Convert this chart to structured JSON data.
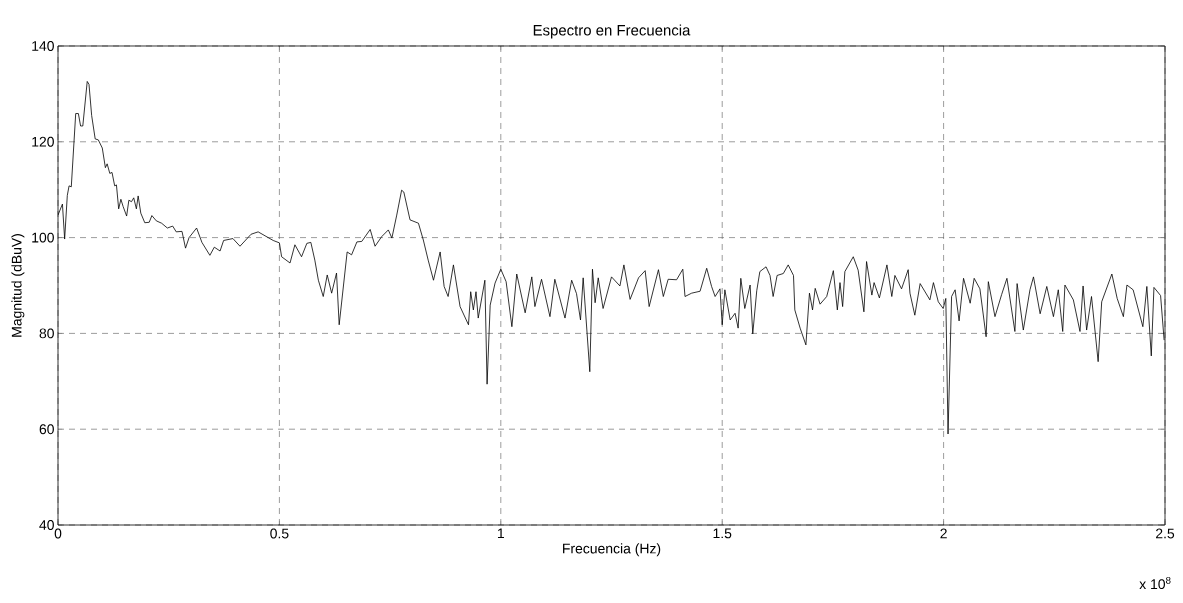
{
  "chart_data": {
    "type": "line",
    "title": "Espectro en Frecuencia",
    "xlabel": "Frecuencia (Hz)",
    "ylabel": "Magnitud (dBuV)",
    "annotations": [
      "x 10$^{8}$"
    ],
    "xlim": [
      0,
      2.5
    ],
    "xticks": [
      0,
      0.5,
      1,
      1.5,
      2,
      2.5
    ],
    "ylim": [
      40,
      140
    ],
    "yticks": [
      40,
      60,
      80,
      100,
      120,
      140
    ],
    "grid": true,
    "series": [
      {
        "color": "#000000",
        "x": [
          0,
          0.01,
          0.015,
          0.021,
          0.025,
          0.03,
          0.04,
          0.046,
          0.051,
          0.056,
          0.066,
          0.07,
          0.076,
          0.084,
          0.091,
          0.1,
          0.107,
          0.111,
          0.117,
          0.122,
          0.128,
          0.132,
          0.137,
          0.142,
          0.147,
          0.155,
          0.16,
          0.166,
          0.171,
          0.177,
          0.181,
          0.187,
          0.196,
          0.206,
          0.212,
          0.222,
          0.234,
          0.247,
          0.259,
          0.267,
          0.28,
          0.288,
          0.296,
          0.313,
          0.325,
          0.343,
          0.353,
          0.366,
          0.374,
          0.395,
          0.411,
          0.436,
          0.452,
          0.486,
          0.5,
          0.505,
          0.524,
          0.535,
          0.55,
          0.562,
          0.571,
          0.58,
          0.588,
          0.599,
          0.608,
          0.618,
          0.629,
          0.635,
          0.653,
          0.663,
          0.675,
          0.686,
          0.705,
          0.716,
          0.731,
          0.746,
          0.754,
          0.765,
          0.776,
          0.781,
          0.795,
          0.814,
          0.825,
          0.836,
          0.848,
          0.863,
          0.872,
          0.881,
          0.893,
          0.908,
          0.927,
          0.932,
          0.938,
          0.944,
          0.949,
          0.964,
          0.969,
          0.976,
          0.987,
          1.0,
          1.012,
          1.025,
          1.036,
          1.055,
          1.07,
          1.077,
          1.092,
          1.111,
          1.122,
          1.145,
          1.16,
          1.171,
          1.18,
          1.186,
          1.201,
          1.207,
          1.213,
          1.22,
          1.231,
          1.25,
          1.269,
          1.278,
          1.292,
          1.311,
          1.326,
          1.335,
          1.356,
          1.367,
          1.378,
          1.397,
          1.411,
          1.416,
          1.431,
          1.45,
          1.465,
          1.476,
          1.484,
          1.495,
          1.5,
          1.506,
          1.518,
          1.529,
          1.536,
          1.542,
          1.551,
          1.563,
          1.569,
          1.578,
          1.585,
          1.599,
          1.608,
          1.615,
          1.624,
          1.638,
          1.649,
          1.661,
          1.664,
          1.676,
          1.689,
          1.697,
          1.704,
          1.71,
          1.721,
          1.736,
          1.751,
          1.76,
          1.766,
          1.772,
          1.777,
          1.796,
          1.807,
          1.82,
          1.826,
          1.838,
          1.843,
          1.855,
          1.872,
          1.883,
          1.89,
          1.905,
          1.92,
          1.924,
          1.935,
          1.947,
          1.969,
          1.977,
          1.988,
          1.999,
          2.005,
          2.01,
          2.018,
          2.026,
          2.035,
          2.045,
          2.06,
          2.069,
          2.082,
          2.096,
          2.101,
          2.116,
          2.131,
          2.143,
          2.161,
          2.166,
          2.18,
          2.195,
          2.203,
          2.218,
          2.233,
          2.248,
          2.259,
          2.269,
          2.274,
          2.293,
          2.308,
          2.315,
          2.323,
          2.334,
          2.349,
          2.357,
          2.38,
          2.392,
          2.406,
          2.414,
          2.428,
          2.45,
          2.459,
          2.469,
          2.475,
          2.49,
          2.498
        ],
        "values": [
          104.7,
          107,
          99.7,
          108.8,
          110.8,
          110.6,
          125.9,
          125.9,
          123.3,
          123.3,
          132.6,
          132,
          125.5,
          120.6,
          120.4,
          118.7,
          114.6,
          115.4,
          113.4,
          113.6,
          110.8,
          111,
          106,
          108,
          106.5,
          104.5,
          107.8,
          107.5,
          108.3,
          106,
          108.7,
          105.1,
          103.1,
          103.2,
          104.6,
          103.5,
          103,
          102,
          102.4,
          101.2,
          101.3,
          97.8,
          100,
          102,
          99,
          96.3,
          98,
          97.2,
          99.4,
          99.8,
          98.2,
          100.7,
          101.2,
          99.4,
          98.9,
          96,
          94.7,
          98.5,
          96,
          98.8,
          99,
          95.3,
          91.1,
          87.7,
          92.2,
          88.4,
          92.6,
          81.8,
          97,
          96.4,
          99.1,
          99.2,
          101.7,
          98.2,
          100.2,
          101.6,
          99.9,
          104.7,
          109.9,
          109.5,
          103.7,
          103,
          99.5,
          95.3,
          91.1,
          97,
          89.8,
          87.7,
          94.3,
          85.6,
          81.8,
          88.7,
          84.9,
          88.7,
          83.2,
          91.1,
          69.4,
          85.9,
          90.5,
          93.4,
          90.8,
          81.4,
          92.4,
          84.3,
          91.8,
          85.6,
          91.3,
          83.5,
          91.3,
          83.2,
          91.1,
          88.3,
          82.8,
          91.6,
          72,
          93.4,
          86.4,
          91.6,
          85.2,
          91.8,
          89.9,
          94.3,
          87.1,
          91.6,
          93.1,
          85.6,
          93.3,
          87.7,
          91.3,
          91.2,
          93.4,
          87.7,
          88.4,
          88.8,
          93.6,
          89.8,
          87.7,
          89.3,
          81.8,
          89.1,
          82.8,
          84.2,
          81.1,
          91.5,
          85.2,
          90.1,
          79.9,
          88.9,
          92.9,
          93.9,
          92.1,
          87.7,
          92.1,
          92.5,
          94.3,
          92.1,
          84.9,
          81.1,
          77.6,
          88.4,
          84.9,
          89.4,
          86.1,
          87.7,
          93.1,
          84.9,
          90.6,
          85.6,
          92.9,
          96,
          93.2,
          84.5,
          95,
          88,
          90.6,
          87.4,
          94.3,
          87.7,
          92.1,
          89.3,
          93.3,
          88.4,
          83.8,
          90.4,
          87,
          90.6,
          86.6,
          85.2,
          87.3,
          59,
          87.7,
          89.1,
          82.6,
          91.5,
          86.3,
          91.5,
          89.3,
          79.3,
          90.8,
          83.5,
          88.1,
          91.5,
          80.4,
          90.4,
          80.7,
          89.1,
          91.8,
          84.1,
          89.8,
          83.5,
          89.1,
          80.4,
          90.1,
          87,
          80.4,
          89.9,
          80.7,
          87.7,
          74.1,
          86.6,
          92.4,
          87.3,
          83.5,
          90.1,
          89.1,
          81.4,
          89.8,
          75.3,
          89.6,
          87.9,
          78.6
        ]
      }
    ]
  }
}
